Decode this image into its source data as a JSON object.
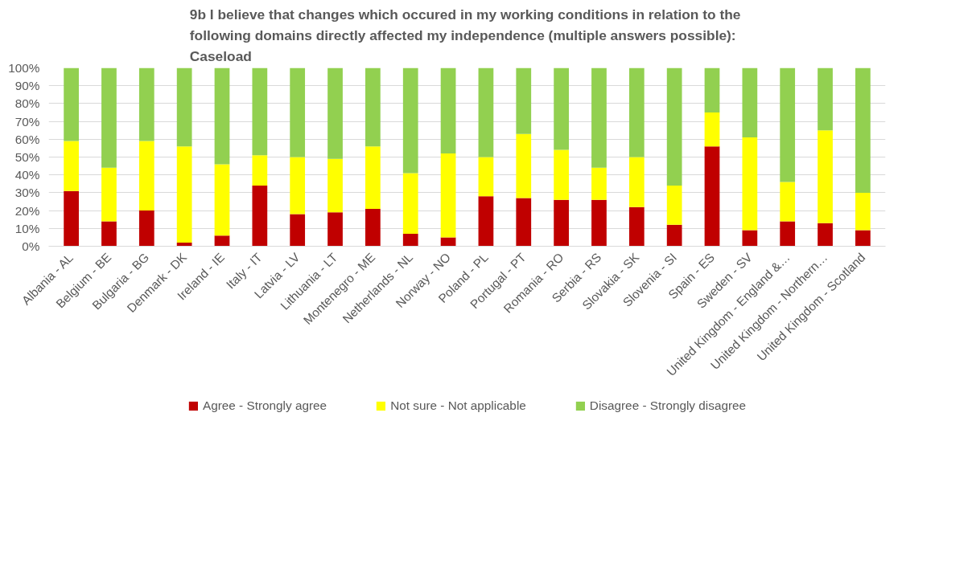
{
  "chart_data": {
    "type": "bar",
    "stacked": true,
    "title": "9b  I believe that changes which occured in my working conditions in relation to the\nfollowing domains directly affected my independence (multiple answers possible):\nCaseload",
    "categories": [
      "Albania - AL",
      "Belgium - BE",
      "Bulgaria - BG",
      "Denmark - DK",
      "Ireland - IE",
      "Italy - IT",
      "Latvia - LV",
      "Lithuania - LT",
      "Montenegro - ME",
      "Netherlands - NL",
      "Norway - NO",
      "Poland - PL",
      "Portugal - PT",
      "Romania - RO",
      "Serbia - RS",
      "Slovakia - SK",
      "Slovenia - SI",
      "Spain - ES",
      "Sweden - SV",
      "United Kingdom - England &…",
      "United Kingdom - Northern…",
      "United Kingdom - Scotland"
    ],
    "series": [
      {
        "name": "Agree - Strongly agree",
        "color": "#c00000",
        "values": [
          31,
          14,
          20,
          2,
          6,
          34,
          18,
          19,
          21,
          7,
          5,
          28,
          27,
          26,
          26,
          22,
          12,
          56,
          9,
          14,
          13,
          9
        ]
      },
      {
        "name": "Not sure - Not applicable",
        "color": "#ffff00",
        "values": [
          28,
          30,
          39,
          54,
          40,
          17,
          32,
          30,
          35,
          34,
          47,
          22,
          36,
          28,
          18,
          28,
          22,
          19,
          52,
          22,
          52,
          21
        ]
      },
      {
        "name": "Disagree - Strongly disagree",
        "color": "#92d050",
        "values": [
          41,
          56,
          41,
          44,
          54,
          49,
          50,
          51,
          44,
          59,
          48,
          50,
          37,
          46,
          56,
          50,
          66,
          25,
          39,
          64,
          35,
          70
        ]
      }
    ],
    "ylim": [
      0,
      100
    ],
    "yticks": [
      {
        "value": 0,
        "label": "0%"
      },
      {
        "value": 10,
        "label": "10%"
      },
      {
        "value": 20,
        "label": "20%"
      },
      {
        "value": 30,
        "label": "30%"
      },
      {
        "value": 40,
        "label": "40%"
      },
      {
        "value": 50,
        "label": "50%"
      },
      {
        "value": 60,
        "label": "60%"
      },
      {
        "value": 70,
        "label": "70%"
      },
      {
        "value": 80,
        "label": "80%"
      },
      {
        "value": 90,
        "label": "90%"
      },
      {
        "value": 100,
        "label": "100%"
      }
    ],
    "grid": "y",
    "legend": "bottom"
  }
}
